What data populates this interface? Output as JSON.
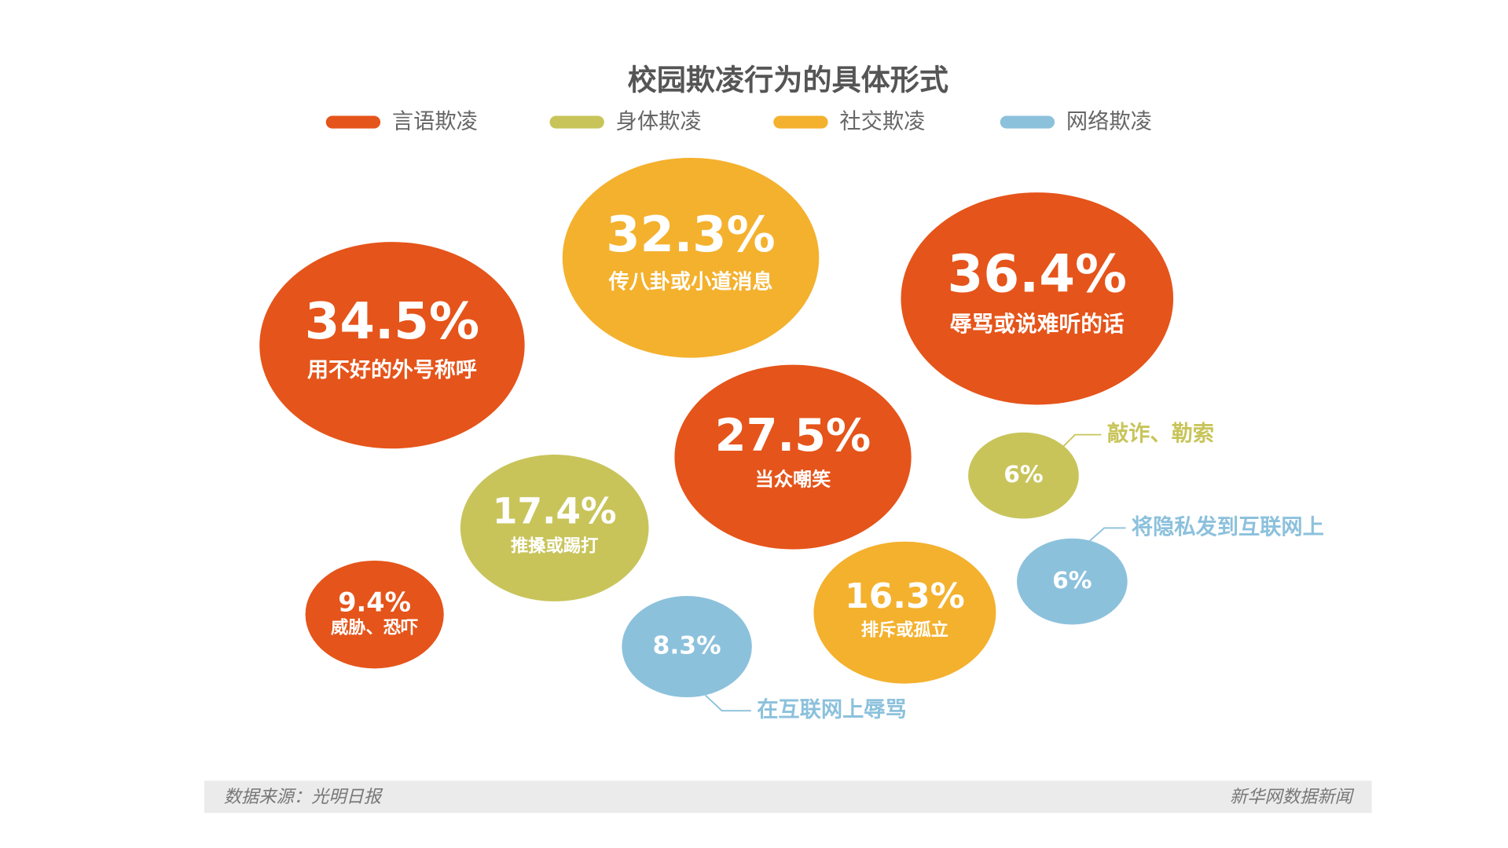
{
  "chart_data": {
    "type": "bubble",
    "title": "校园欺凌行为的具体形式",
    "series": [
      {
        "name": "言语欺凌",
        "color": "#e5541a",
        "values": [
          34.5,
          36.4,
          27.5,
          9.4
        ],
        "value_labels": [
          "34.5%",
          "36.4%",
          "27.5%",
          "9.4%"
        ],
        "labels": [
          "用不好的外号称呼",
          "辱骂或说难听的话",
          "当众嘲笑",
          "威胁、恐吓"
        ]
      },
      {
        "name": "身体欺凌",
        "color": "#c8c45a",
        "values": [
          17.4,
          6
        ],
        "value_labels": [
          "17.4%",
          "6%"
        ],
        "labels": [
          "推搡或踢打",
          "敲诈、勒索"
        ]
      },
      {
        "name": "社交欺凌",
        "color": "#f4b12e",
        "values": [
          32.3,
          16.3
        ],
        "value_labels": [
          "32.3%",
          "16.3%"
        ],
        "labels": [
          "传八卦或小道消息",
          "排斥或孤立"
        ]
      },
      {
        "name": "网络欺凌",
        "color": "#8cc1dc",
        "values": [
          8.3,
          6
        ],
        "value_labels": [
          "8.3%",
          "6%"
        ],
        "labels": [
          "在互联网上辱骂",
          "将隐私发到互联网上"
        ]
      }
    ],
    "source": "数据来源：光明日报",
    "credit": "新华网数据新闻"
  }
}
